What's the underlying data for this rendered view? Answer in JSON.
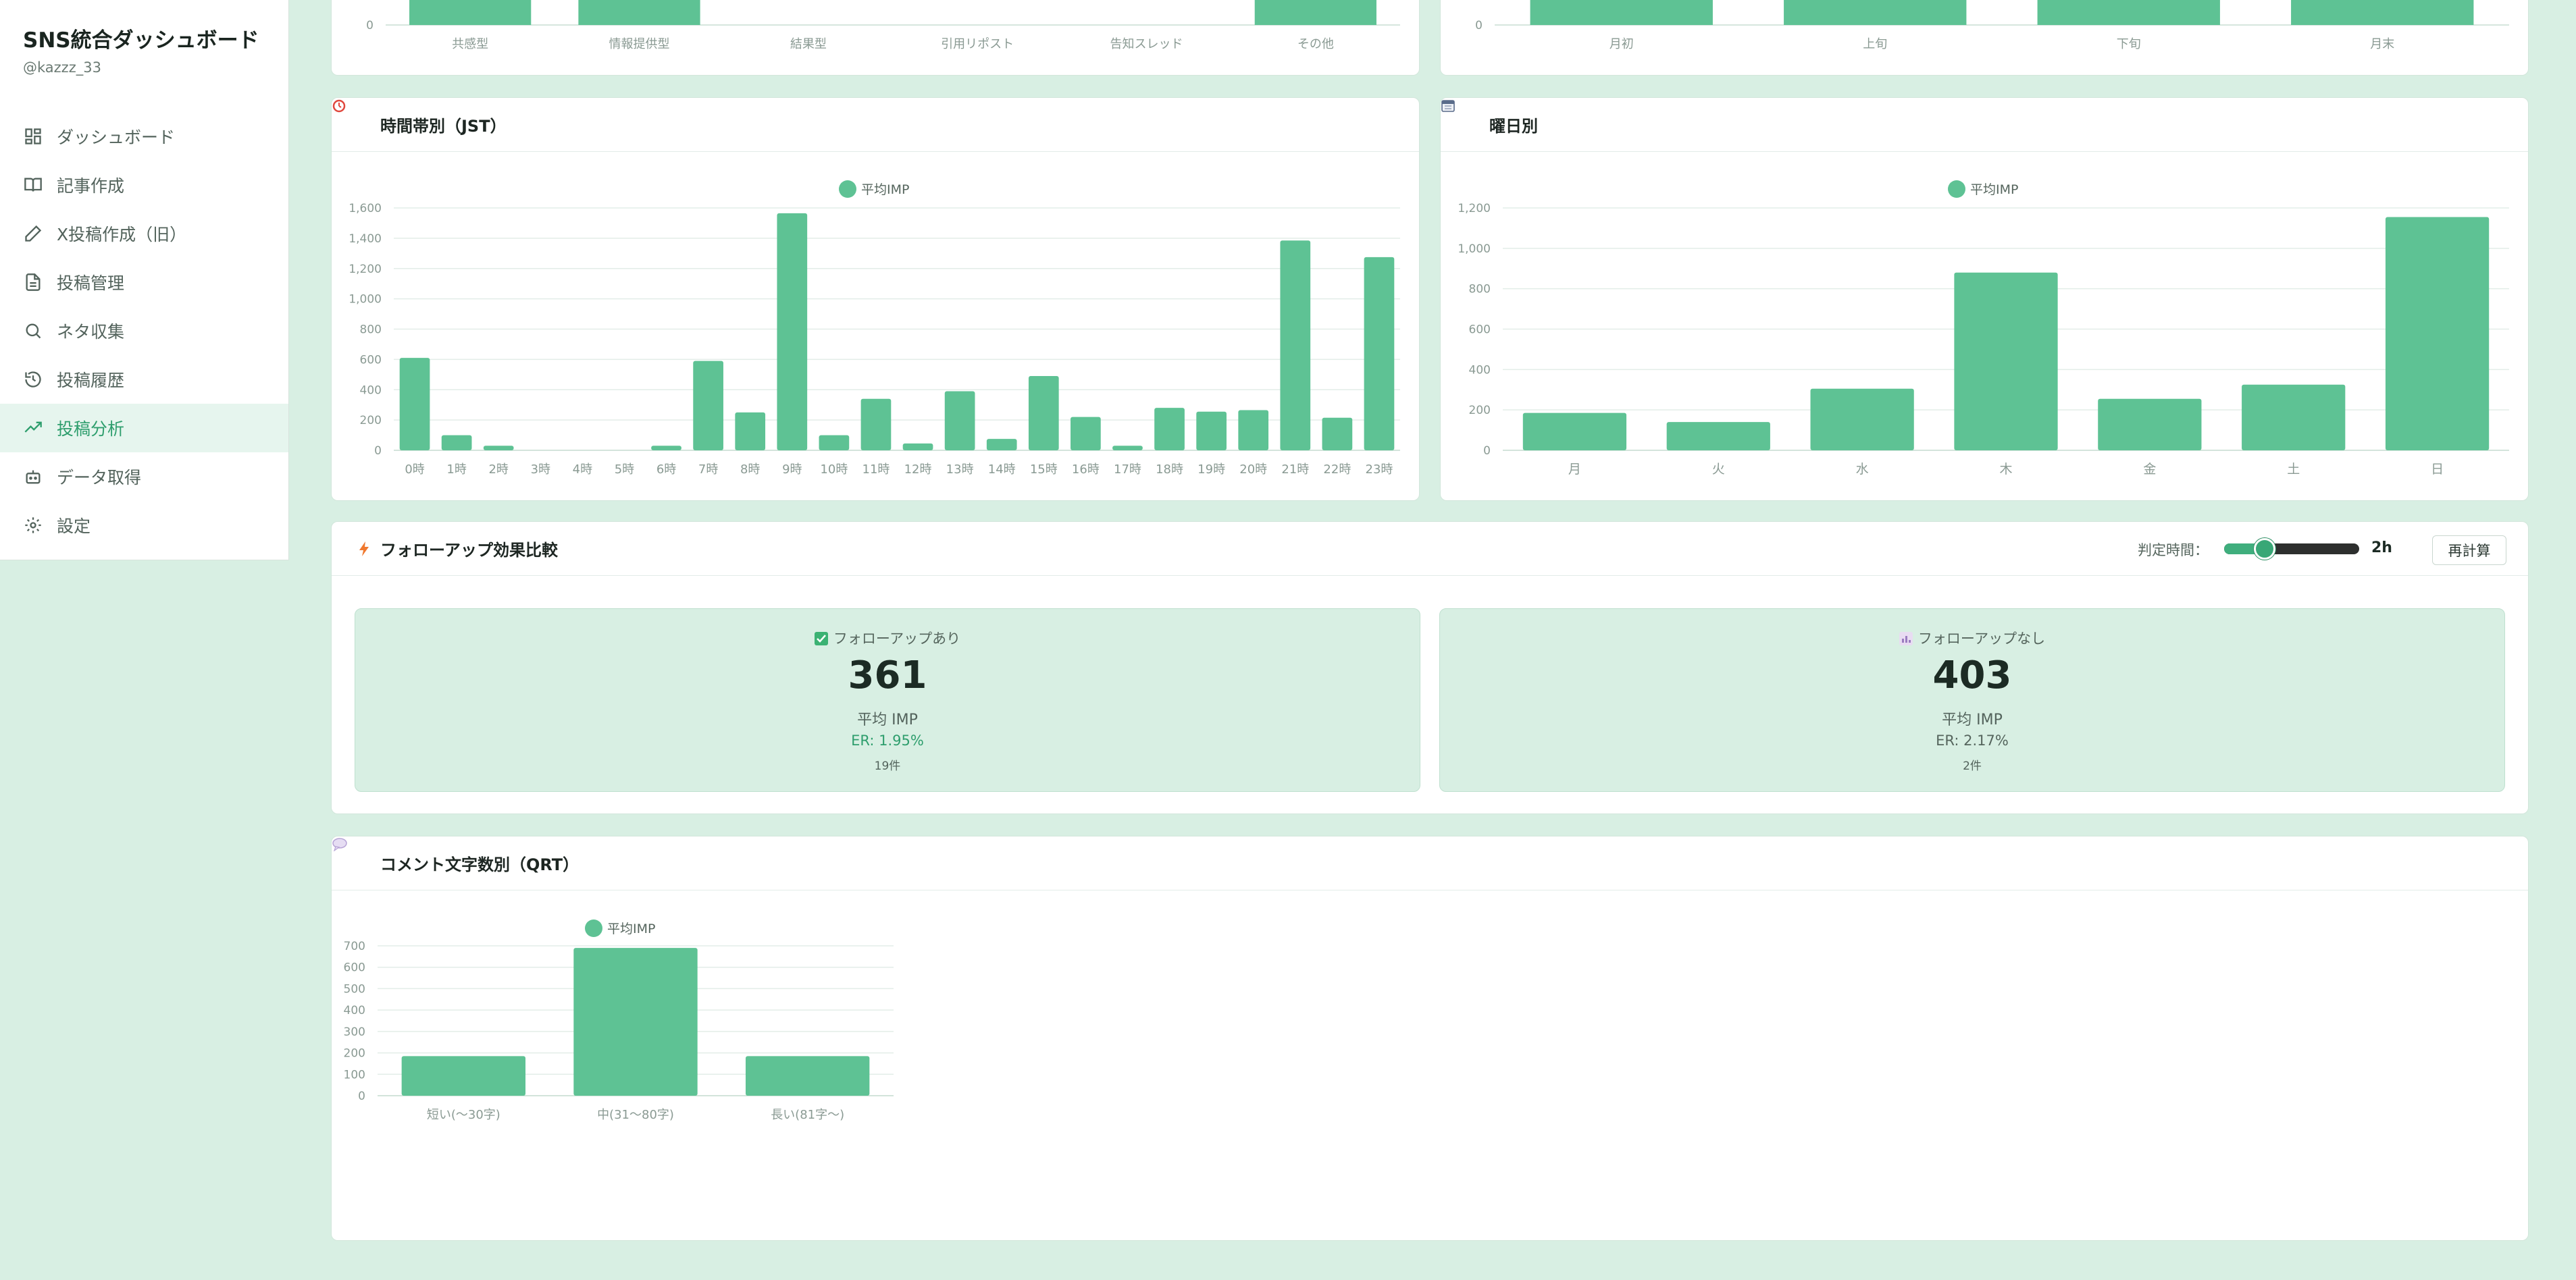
{
  "sidebar": {
    "title": "SNS統合ダッシュボード",
    "account": "@kazzz_33",
    "items": [
      {
        "label": "ダッシュボード",
        "icon": "dashboard-icon",
        "active": false
      },
      {
        "label": "記事作成",
        "icon": "book-icon",
        "active": false
      },
      {
        "label": "X投稿作成（旧）",
        "icon": "pencil-icon",
        "active": false
      },
      {
        "label": "投稿管理",
        "icon": "document-icon",
        "active": false
      },
      {
        "label": "ネタ収集",
        "icon": "search-icon",
        "active": false
      },
      {
        "label": "投稿履歴",
        "icon": "history-icon",
        "active": false
      },
      {
        "label": "投稿分析",
        "icon": "trending-up-icon",
        "active": true
      },
      {
        "label": "データ取得",
        "icon": "bot-icon",
        "active": false
      },
      {
        "label": "設定",
        "icon": "gear-icon",
        "active": false
      }
    ]
  },
  "colors": {
    "bar": "#5ec294",
    "accent": "#2e9e6d",
    "background": "#d8efe3"
  },
  "top_left_chart": {
    "categories": [
      "共感型",
      "情報提供型",
      "結果型",
      "引用リポスト",
      "告知スレッド",
      "その他"
    ],
    "values": [
      null,
      null,
      0,
      0,
      0,
      null
    ],
    "y_tick_zero": "0"
  },
  "top_right_chart": {
    "categories": [
      "月初",
      "上旬",
      "下旬",
      "月末"
    ],
    "y_tick_zero": "0"
  },
  "hourly": {
    "title": "時間帯別（JST）",
    "icon": "alarm-clock-icon",
    "chart_data": {
      "type": "bar",
      "legend": "平均IMP",
      "legend_position": "top-center",
      "categories": [
        "0時",
        "1時",
        "2時",
        "3時",
        "4時",
        "5時",
        "6時",
        "7時",
        "8時",
        "9時",
        "10時",
        "11時",
        "12時",
        "13時",
        "14時",
        "15時",
        "16時",
        "17時",
        "18時",
        "19時",
        "20時",
        "21時",
        "22時",
        "23時"
      ],
      "values": [
        610,
        100,
        30,
        0,
        0,
        0,
        30,
        590,
        250,
        1565,
        100,
        340,
        45,
        390,
        75,
        490,
        220,
        30,
        280,
        255,
        265,
        1385,
        215,
        1275
      ],
      "ylim": [
        0,
        1600
      ],
      "yticks": [
        "0",
        "200",
        "400",
        "600",
        "800",
        "1,000",
        "1,200",
        "1,400",
        "1,600"
      ]
    }
  },
  "weekday": {
    "title": "曜日別",
    "icon": "calendar-icon",
    "chart_data": {
      "type": "bar",
      "legend": "平均IMP",
      "legend_position": "top-center",
      "categories": [
        "月",
        "火",
        "水",
        "木",
        "金",
        "土",
        "日"
      ],
      "values": [
        185,
        140,
        305,
        880,
        255,
        325,
        1155
      ],
      "ylim": [
        0,
        1200
      ],
      "yticks": [
        "0",
        "200",
        "400",
        "600",
        "800",
        "1,000",
        "1,200"
      ]
    }
  },
  "followup": {
    "title": "フォローアップ効果比較",
    "icon": "lightning-icon",
    "threshold_label": "判定時間：",
    "threshold_value": "2h",
    "threshold_fraction": 0.3,
    "recalc_label": "再計算",
    "with": {
      "title": "フォローアップあり",
      "value": "361",
      "label": "平均 IMP",
      "er": "ER: 1.95%",
      "count": "19件"
    },
    "without": {
      "title": "フォローアップなし",
      "value": "403",
      "label": "平均 IMP",
      "er": "ER: 2.17%",
      "count": "2件"
    }
  },
  "comment_length": {
    "title": "コメント文字数別（QRT）",
    "icon": "speech-bubble-icon",
    "chart_data": {
      "type": "bar",
      "legend": "平均IMP",
      "legend_position": "top-center",
      "categories": [
        "短い(〜30字)",
        "中(31〜80字)",
        "長い(81字〜)"
      ],
      "values": [
        185,
        690,
        185
      ],
      "ylim": [
        0,
        700
      ],
      "yticks": [
        "0",
        "100",
        "200",
        "300",
        "400",
        "500",
        "600",
        "700"
      ]
    }
  }
}
